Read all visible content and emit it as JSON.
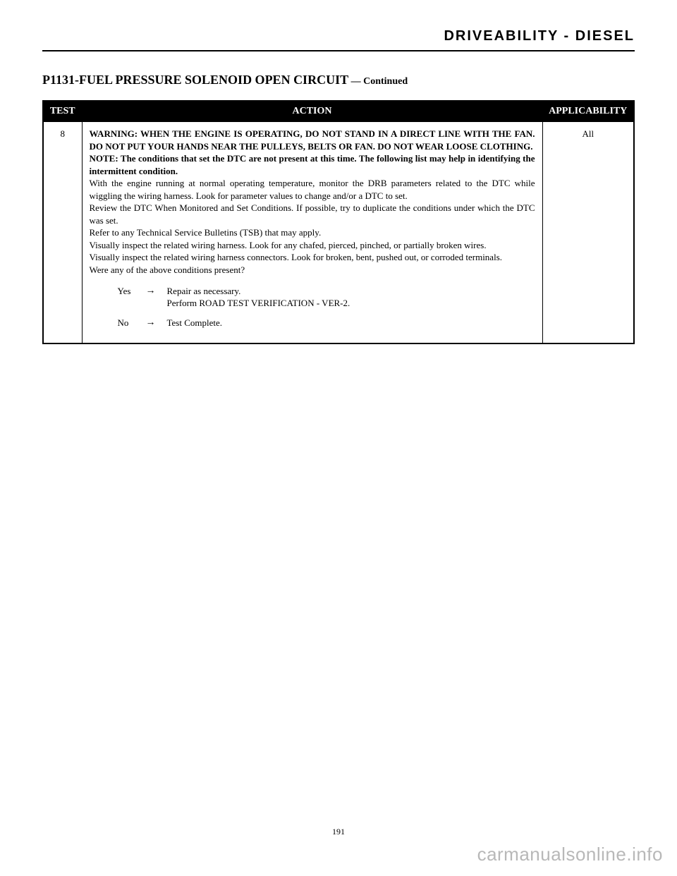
{
  "section_title": "DRIVEABILITY - DIESEL",
  "page_title_main": "P1131-FUEL PRESSURE SOLENOID OPEN CIRCUIT",
  "page_title_continued": " — Continued",
  "table": {
    "headers": {
      "test": "TEST",
      "action": "ACTION",
      "applicability": "APPLICABILITY"
    },
    "row": {
      "test": "8",
      "applicability": "All",
      "warning": "WARNING: WHEN THE ENGINE IS OPERATING, DO NOT STAND IN A DIRECT LINE WITH THE FAN. DO NOT PUT YOUR HANDS NEAR THE PULLEYS, BELTS OR FAN. DO NOT WEAR LOOSE CLOTHING.",
      "note": "NOTE: The conditions that set the DTC are not present at this time. The following list may help in identifying the intermittent condition.",
      "body1": "With the engine running at normal operating temperature, monitor the DRB parameters related to the DTC while wiggling the wiring harness. Look for parameter values to change and/or a DTC to set.",
      "body2": "Review the DTC When Monitored and Set Conditions. If possible, try to duplicate the conditions under which the DTC was set.",
      "body3": "Refer to any Technical Service Bulletins (TSB) that may apply.",
      "body4": "Visually inspect the related wiring harness. Look for any chafed, pierced, pinched, or partially broken wires.",
      "body5": "Visually inspect the related wiring harness connectors. Look for broken, bent, pushed out, or corroded terminals.",
      "question": "Were any of the above conditions present?",
      "yes_label": "Yes",
      "yes_arrow": "→",
      "yes_text1": "Repair as necessary.",
      "yes_text2": "Perform ROAD TEST VERIFICATION - VER-2.",
      "no_label": "No",
      "no_arrow": "→",
      "no_text": "Test Complete."
    }
  },
  "page_number": "191",
  "watermark": "carmanualsonline.info"
}
